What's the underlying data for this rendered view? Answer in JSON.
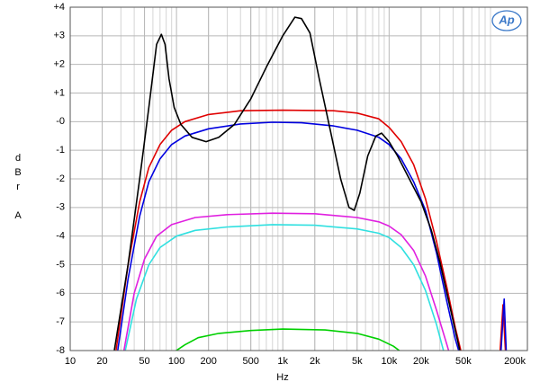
{
  "chart_data": {
    "type": "line",
    "logo": "Ap",
    "x_label": "Hz",
    "y_label": "dBr A",
    "xscale": "log",
    "grid": true,
    "xlim": [
      10,
      200000
    ],
    "ylim": [
      -8,
      4
    ],
    "xticks": [
      10,
      20,
      50,
      100,
      200,
      500,
      {
        "value": 1000,
        "label": "1k"
      },
      {
        "value": 2000,
        "label": "2k"
      },
      {
        "value": 5000,
        "label": "5k"
      },
      {
        "value": 10000,
        "label": "10k"
      },
      {
        "value": 20000,
        "label": "20k"
      },
      {
        "value": 50000,
        "label": "50k"
      },
      {
        "value": 200000,
        "label": "200k"
      }
    ],
    "yticks": [
      {
        "value": 4,
        "label": "+4"
      },
      {
        "value": 3,
        "label": "+3"
      },
      {
        "value": 2,
        "label": "+2"
      },
      {
        "value": 1,
        "label": "+1"
      },
      {
        "value": 0,
        "label": "-0"
      },
      -1,
      -2,
      -3,
      -4,
      -5,
      -6,
      -7,
      -8
    ],
    "series": [
      {
        "color": "#00d000",
        "x": [
          95,
          120,
          160,
          250,
          500,
          1000,
          2500,
          5000,
          8000,
          11000,
          13000
        ],
        "values": [
          -8.05,
          -7.8,
          -7.55,
          -7.4,
          -7.3,
          -7.25,
          -7.28,
          -7.4,
          -7.6,
          -7.85,
          -8.05
        ]
      },
      {
        "color": "#30e0e0",
        "x": [
          33,
          42,
          55,
          70,
          100,
          150,
          300,
          800,
          2000,
          5000,
          8000,
          10000,
          13000,
          17000,
          22000,
          28000,
          33000
        ],
        "values": [
          -8,
          -6.2,
          -5,
          -4.4,
          -4,
          -3.8,
          -3.68,
          -3.6,
          -3.62,
          -3.75,
          -3.9,
          -4.05,
          -4.4,
          -5,
          -5.9,
          -7.1,
          -8.1
        ]
      },
      {
        "color": "#e020e0",
        "x": [
          32,
          40,
          50,
          65,
          90,
          150,
          300,
          800,
          2000,
          5000,
          8000,
          10000,
          13000,
          17000,
          22000,
          28000,
          35000,
          37000
        ],
        "values": [
          -8,
          -6,
          -4.8,
          -4,
          -3.6,
          -3.35,
          -3.25,
          -3.2,
          -3.22,
          -3.35,
          -3.5,
          -3.65,
          -3.95,
          -4.5,
          -5.4,
          -6.6,
          -7.8,
          -8.1
        ]
      },
      {
        "color": "#e00000",
        "x": [
          27,
          35,
          45,
          55,
          70,
          90,
          120,
          200,
          400,
          1000,
          3000,
          5000,
          8000,
          10000,
          13000,
          17000,
          22000,
          28000,
          35000,
          42000,
          48000,
          80000,
          110000,
          118000,
          125000
        ],
        "values": [
          -8,
          -5,
          -2.8,
          -1.6,
          -0.8,
          -0.3,
          0,
          0.25,
          0.38,
          0.4,
          0.38,
          0.3,
          0.1,
          -0.2,
          -0.7,
          -1.5,
          -2.7,
          -4.2,
          -5.8,
          -7.2,
          -8.1,
          null,
          -8.2,
          -6.4,
          -8.2
        ]
      },
      {
        "color": "#0000e0",
        "x": [
          28,
          35,
          45,
          55,
          70,
          90,
          120,
          200,
          400,
          800,
          1500,
          3000,
          5000,
          8000,
          10000,
          13000,
          17000,
          22000,
          28000,
          35000,
          42000,
          46000,
          80000,
          112000,
          121000,
          127000
        ],
        "values": [
          -8,
          -5.5,
          -3.3,
          -2.1,
          -1.3,
          -0.8,
          -0.5,
          -0.25,
          -0.08,
          -0.02,
          -0.04,
          -0.15,
          -0.3,
          -0.55,
          -0.8,
          -1.3,
          -2.1,
          -3.1,
          -4.6,
          -6.3,
          -7.6,
          -8.1,
          null,
          -8.2,
          -6.2,
          -8.2
        ]
      },
      {
        "color": "#000000",
        "x": [
          26,
          35,
          45,
          55,
          65,
          72,
          78,
          85,
          95,
          110,
          140,
          190,
          250,
          350,
          500,
          700,
          1000,
          1300,
          1500,
          1800,
          2200,
          2800,
          3500,
          4200,
          4700,
          5300,
          6300,
          7500,
          8500,
          10000,
          12000,
          15000,
          20000,
          25000,
          30000,
          36000,
          42000,
          47000
        ],
        "values": [
          -8,
          -5,
          -2,
          0.5,
          2.7,
          3.05,
          2.7,
          1.5,
          0.5,
          -0.1,
          -0.55,
          -0.7,
          -0.55,
          -0.1,
          0.8,
          1.9,
          3,
          3.65,
          3.6,
          3.1,
          1.5,
          -0.3,
          -2,
          -3,
          -3.1,
          -2.5,
          -1.2,
          -0.5,
          -0.4,
          -0.7,
          -1.2,
          -1.9,
          -2.8,
          -3.8,
          -4.9,
          -6.2,
          -7.3,
          -8.1
        ]
      }
    ]
  }
}
